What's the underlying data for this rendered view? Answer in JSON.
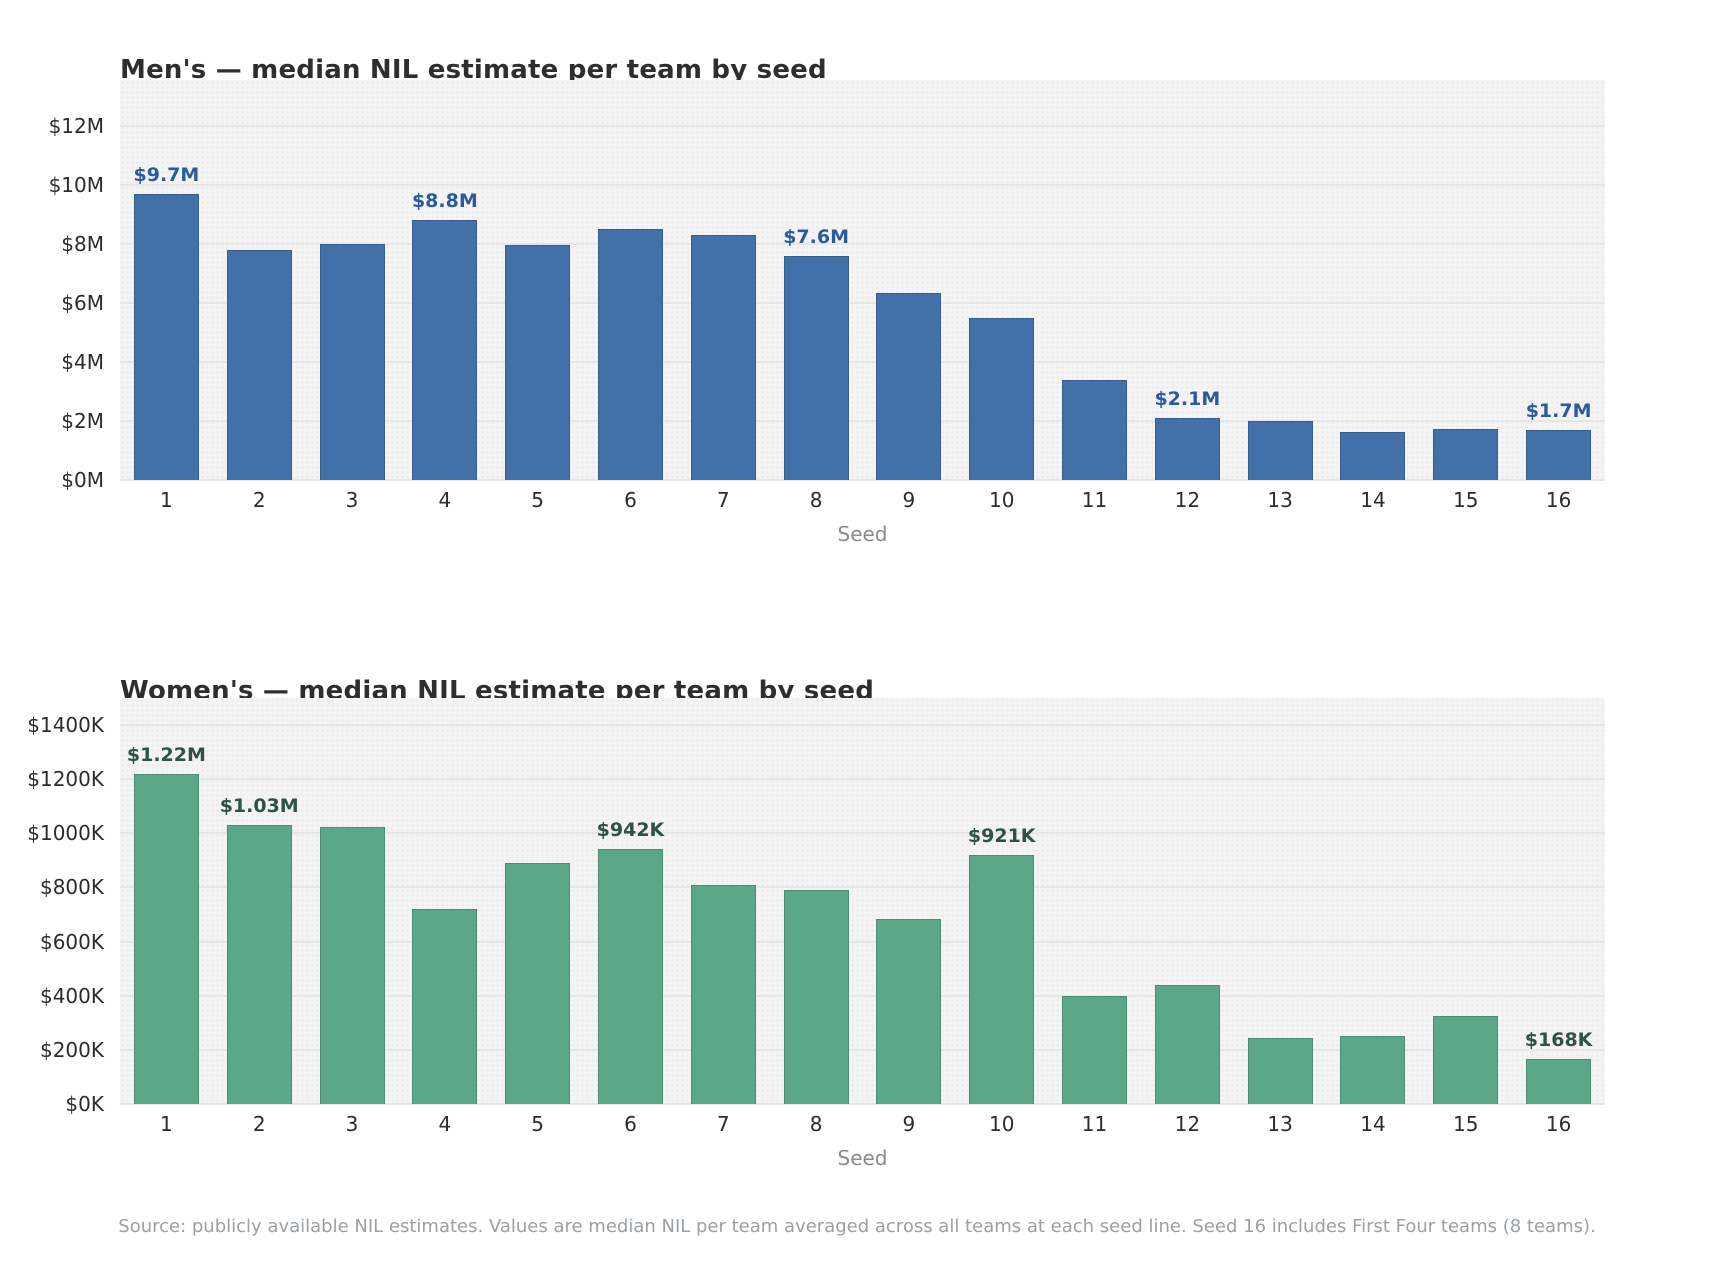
{
  "page": {
    "background": "#ffffff",
    "footer_note": "Source: publicly available NIL estimates. Values are median NIL per team averaged across all teams at each seed line. Seed 16 includes First Four teams (8 teams)."
  },
  "chart_data": [
    {
      "type": "bar",
      "title": "Men's — median NIL estimate per team by seed",
      "xlabel": "Seed",
      "ylabel": "",
      "categories": [
        1,
        2,
        3,
        4,
        5,
        6,
        7,
        8,
        9,
        10,
        11,
        12,
        13,
        14,
        15,
        16
      ],
      "values": [
        9700000,
        7800000,
        8000000,
        8800000,
        7950000,
        8500000,
        8300000,
        7600000,
        6350000,
        5500000,
        3400000,
        2100000,
        2000000,
        1620000,
        1740000,
        1700000
      ],
      "bar_labels": [
        "$9.7M",
        null,
        null,
        "$8.8M",
        null,
        null,
        null,
        "$7.6M",
        null,
        null,
        null,
        "$2.1M",
        null,
        null,
        null,
        "$1.7M"
      ],
      "yticks": [
        {
          "value": 0,
          "label": "$0M"
        },
        {
          "value": 2000000,
          "label": "$2M"
        },
        {
          "value": 4000000,
          "label": "$4M"
        },
        {
          "value": 6000000,
          "label": "$6M"
        },
        {
          "value": 8000000,
          "label": "$8M"
        },
        {
          "value": 10000000,
          "label": "$10M"
        },
        {
          "value": 12000000,
          "label": "$12M"
        }
      ],
      "ylim": [
        0,
        13550000
      ],
      "grid": true,
      "legend": false,
      "bar_color": "#4271a9",
      "value_label_color": "#2b5b9c"
    },
    {
      "type": "bar",
      "title": "Women's — median NIL estimate per team by seed",
      "xlabel": "Seed",
      "ylabel": "",
      "categories": [
        1,
        2,
        3,
        4,
        5,
        6,
        7,
        8,
        9,
        10,
        11,
        12,
        13,
        14,
        15,
        16
      ],
      "values": [
        1220000,
        1030000,
        1025000,
        720000,
        890000,
        942000,
        810000,
        790000,
        685000,
        921000,
        400000,
        440000,
        245000,
        250000,
        325000,
        168000
      ],
      "bar_labels": [
        "$1.22M",
        "$1.03M",
        null,
        null,
        null,
        "$942K",
        null,
        null,
        null,
        "$921K",
        null,
        null,
        null,
        null,
        null,
        "$168K"
      ],
      "yticks": [
        {
          "value": 0,
          "label": "$0K"
        },
        {
          "value": 200000,
          "label": "$200K"
        },
        {
          "value": 400000,
          "label": "$400K"
        },
        {
          "value": 600000,
          "label": "$600K"
        },
        {
          "value": 800000,
          "label": "$800K"
        },
        {
          "value": 1000000,
          "label": "$1000K"
        },
        {
          "value": 1200000,
          "label": "$1200K"
        },
        {
          "value": 1400000,
          "label": "$1400K"
        }
      ],
      "ylim": [
        0,
        1500000
      ],
      "grid": true,
      "legend": false,
      "bar_color": "#5aa78a",
      "value_label_color": "#2e5245"
    }
  ]
}
